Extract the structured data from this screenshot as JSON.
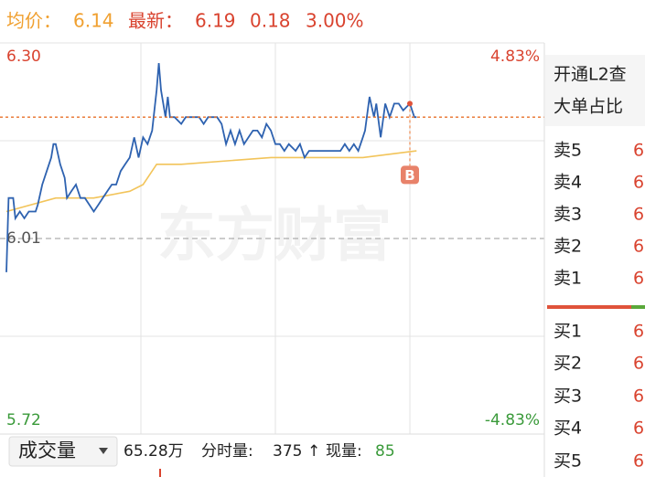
{
  "header": {
    "avg_label": "均价：",
    "avg": "6.14",
    "latest_label": "最新：",
    "latest": "6.19",
    "change": "0.18",
    "change_pct": "3.00%"
  },
  "chart_data": {
    "type": "line",
    "watermark": "东方财富",
    "xlim": [
      0,
      240
    ],
    "ylim": [
      5.72,
      6.3
    ],
    "yticks": [
      {
        "value": 6.3,
        "label": "6.30"
      },
      6.01,
      5.72
    ],
    "y2lim": [
      -4.83,
      4.83
    ],
    "y2ticks": [
      {
        "value": 4.83,
        "label": "4.83%"
      },
      {
        "value": -4.83,
        "label": "-4.83%"
      }
    ],
    "series": [
      {
        "color": "#2e62b0",
        "x": [
          0,
          1,
          3,
          4,
          6,
          8,
          10,
          13,
          14,
          16,
          18,
          20,
          21,
          22,
          24,
          26,
          27,
          29,
          31,
          33,
          35,
          37,
          39,
          41,
          43,
          45,
          47,
          49,
          51,
          53,
          55,
          57,
          59,
          61,
          63,
          65,
          67,
          68,
          69,
          71,
          72,
          73,
          75,
          78,
          80,
          82,
          84,
          86,
          88,
          90,
          92,
          94,
          96,
          98,
          100,
          102,
          104,
          106,
          108,
          110,
          112,
          114,
          116,
          118,
          120,
          122,
          124,
          126,
          129,
          131,
          133,
          135,
          137,
          139,
          141,
          143,
          145,
          147,
          149,
          151,
          153,
          155,
          157,
          159,
          160,
          162,
          164,
          165,
          167,
          169,
          171,
          173,
          175,
          177,
          180,
          182,
          183
        ],
        "values": [
          5.96,
          6.07,
          6.07,
          6.04,
          6.05,
          6.04,
          6.05,
          6.05,
          6.06,
          6.09,
          6.11,
          6.13,
          6.15,
          6.15,
          6.12,
          6.1,
          6.07,
          6.08,
          6.09,
          6.07,
          6.07,
          6.06,
          6.05,
          6.06,
          6.07,
          6.08,
          6.09,
          6.09,
          6.11,
          6.12,
          6.13,
          6.16,
          6.13,
          6.16,
          6.15,
          6.17,
          6.23,
          6.27,
          6.23,
          6.19,
          6.22,
          6.19,
          6.19,
          6.18,
          6.19,
          6.19,
          6.19,
          6.19,
          6.18,
          6.19,
          6.19,
          6.19,
          6.18,
          6.15,
          6.17,
          6.15,
          6.17,
          6.15,
          6.16,
          6.17,
          6.17,
          6.16,
          6.18,
          6.17,
          6.15,
          6.15,
          6.14,
          6.15,
          6.14,
          6.15,
          6.13,
          6.14,
          6.14,
          6.14,
          6.14,
          6.14,
          6.14,
          6.14,
          6.14,
          6.15,
          6.14,
          6.15,
          6.14,
          6.16,
          6.17,
          6.22,
          6.19,
          6.21,
          6.16,
          6.21,
          6.19,
          6.21,
          6.21,
          6.2,
          6.21,
          6.19,
          6.19
        ]
      },
      {
        "color": "#f2c45a",
        "x": [
          0,
          22,
          39,
          55,
          61,
          67,
          78,
          118,
          159,
          183
        ],
        "values": [
          6.05,
          6.07,
          6.07,
          6.08,
          6.09,
          6.12,
          6.12,
          6.13,
          6.13,
          6.14
        ]
      }
    ],
    "annotations": [
      {
        "label": "B",
        "x": 180
      }
    ]
  },
  "volume": {
    "label": "成交量",
    "total": "65.28万",
    "minute_label": "分时量:",
    "minute": "375",
    "arrow": "↑",
    "current_label": "现量:",
    "current": "85"
  },
  "panel": {
    "title": "开通L2查",
    "subtitle": "大单占比",
    "sell": [
      {
        "label": "卖5",
        "value": "6"
      },
      {
        "label": "卖4",
        "value": "6"
      },
      {
        "label": "卖3",
        "value": "6"
      },
      {
        "label": "卖2",
        "value": "6"
      },
      {
        "label": "卖1",
        "value": "6"
      }
    ],
    "buy": [
      {
        "label": "买1",
        "value": "6"
      },
      {
        "label": "买2",
        "value": "6"
      },
      {
        "label": "买3",
        "value": "6"
      },
      {
        "label": "买4",
        "value": "6"
      },
      {
        "label": "买5",
        "value": "6"
      }
    ]
  }
}
